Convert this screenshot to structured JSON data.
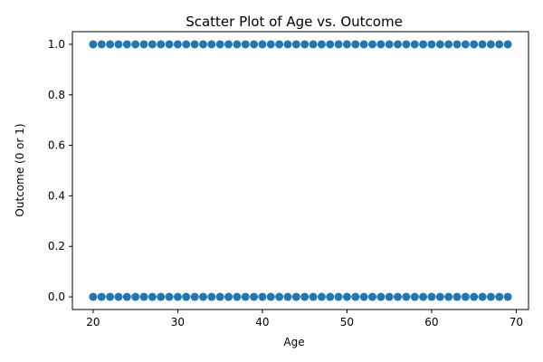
{
  "chart_data": {
    "type": "scatter",
    "title": "Scatter Plot of Age vs. Outcome",
    "xlabel": "Age",
    "ylabel": "Outcome (0 or 1)",
    "xlim": [
      17.55,
      71.45
    ],
    "ylim": [
      -0.05,
      1.05
    ],
    "xticks": [
      20,
      30,
      40,
      50,
      60,
      70
    ],
    "yticks": [
      0.0,
      0.2,
      0.4,
      0.6,
      0.8,
      1.0
    ],
    "xtick_labels": [
      "20",
      "30",
      "40",
      "50",
      "60",
      "70"
    ],
    "ytick_labels": [
      "0.0",
      "0.2",
      "0.4",
      "0.6",
      "0.8",
      "1.0"
    ],
    "grid": false,
    "marker_color": "#1f77b4",
    "series": [
      {
        "x": [
          20,
          21,
          22,
          23,
          24,
          25,
          26,
          27,
          28,
          29,
          30,
          31,
          32,
          33,
          34,
          35,
          36,
          37,
          38,
          39,
          40,
          41,
          42,
          43,
          44,
          45,
          46,
          47,
          48,
          49,
          50,
          51,
          52,
          53,
          54,
          55,
          56,
          57,
          58,
          59,
          60,
          61,
          62,
          63,
          64,
          65,
          66,
          67,
          68,
          69,
          20,
          21,
          22,
          23,
          24,
          25,
          26,
          27,
          28,
          29,
          30,
          31,
          32,
          33,
          34,
          35,
          36,
          37,
          38,
          39,
          40,
          41,
          42,
          43,
          44,
          45,
          46,
          47,
          48,
          49,
          50,
          51,
          52,
          53,
          54,
          55,
          56,
          57,
          58,
          59,
          60,
          61,
          62,
          63,
          64,
          65,
          66,
          67,
          68,
          69
        ],
        "y": [
          1,
          1,
          1,
          1,
          1,
          1,
          1,
          1,
          1,
          1,
          1,
          1,
          1,
          1,
          1,
          1,
          1,
          1,
          1,
          1,
          1,
          1,
          1,
          1,
          1,
          1,
          1,
          1,
          1,
          1,
          1,
          1,
          1,
          1,
          1,
          1,
          1,
          1,
          1,
          1,
          1,
          1,
          1,
          1,
          1,
          1,
          1,
          1,
          1,
          1,
          0,
          0,
          0,
          0,
          0,
          0,
          0,
          0,
          0,
          0,
          0,
          0,
          0,
          0,
          0,
          0,
          0,
          0,
          0,
          0,
          0,
          0,
          0,
          0,
          0,
          0,
          0,
          0,
          0,
          0,
          0,
          0,
          0,
          0,
          0,
          0,
          0,
          0,
          0,
          0,
          0,
          0,
          0,
          0,
          0,
          0,
          0,
          0,
          0,
          0
        ]
      }
    ]
  }
}
